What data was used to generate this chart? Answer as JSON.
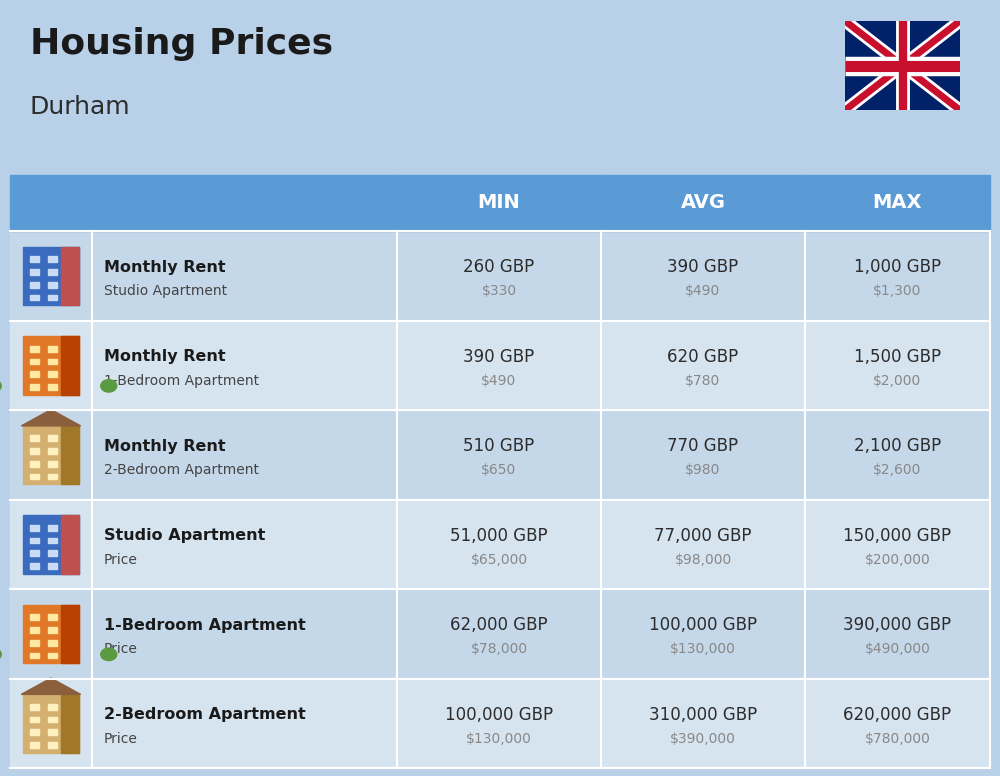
{
  "title": "Housing Prices",
  "subtitle": "Durham",
  "background_color": "#b8d0e8",
  "header_color": "#5b9bd5",
  "header_text_color": "#ffffff",
  "row_colors": [
    "#c5d8ea",
    "#d6e4f0"
  ],
  "col_headers": [
    "MIN",
    "AVG",
    "MAX"
  ],
  "rows": [
    {
      "label_bold": "Monthly Rent",
      "label_sub": "Studio Apartment",
      "min_gbp": "260 GBP",
      "min_usd": "$330",
      "avg_gbp": "390 GBP",
      "avg_usd": "$490",
      "max_gbp": "1,000 GBP",
      "max_usd": "$1,300",
      "icon_type": "studio_blue"
    },
    {
      "label_bold": "Monthly Rent",
      "label_sub": "1-Bedroom Apartment",
      "min_gbp": "390 GBP",
      "min_usd": "$490",
      "avg_gbp": "620 GBP",
      "avg_usd": "$780",
      "max_gbp": "1,500 GBP",
      "max_usd": "$2,000",
      "icon_type": "bedroom1_orange"
    },
    {
      "label_bold": "Monthly Rent",
      "label_sub": "2-Bedroom Apartment",
      "min_gbp": "510 GBP",
      "min_usd": "$650",
      "avg_gbp": "770 GBP",
      "avg_usd": "$980",
      "max_gbp": "2,100 GBP",
      "max_usd": "$2,600",
      "icon_type": "bedroom2_tan"
    },
    {
      "label_bold": "Studio Apartment",
      "label_sub": "Price",
      "min_gbp": "51,000 GBP",
      "min_usd": "$65,000",
      "avg_gbp": "77,000 GBP",
      "avg_usd": "$98,000",
      "max_gbp": "150,000 GBP",
      "max_usd": "$200,000",
      "icon_type": "studio_blue"
    },
    {
      "label_bold": "1-Bedroom Apartment",
      "label_sub": "Price",
      "min_gbp": "62,000 GBP",
      "min_usd": "$78,000",
      "avg_gbp": "100,000 GBP",
      "avg_usd": "$130,000",
      "max_gbp": "390,000 GBP",
      "max_usd": "$490,000",
      "icon_type": "bedroom1_orange"
    },
    {
      "label_bold": "2-Bedroom Apartment",
      "label_sub": "Price",
      "min_gbp": "100,000 GBP",
      "min_usd": "$130,000",
      "avg_gbp": "310,000 GBP",
      "avg_usd": "$390,000",
      "max_gbp": "620,000 GBP",
      "max_usd": "$780,000",
      "icon_type": "bedroom2_tan"
    }
  ],
  "cell_text_color": "#2c2c2c",
  "cell_usd_color": "#888888",
  "label_bold_color": "#1a1a1a",
  "label_sub_color": "#444444"
}
